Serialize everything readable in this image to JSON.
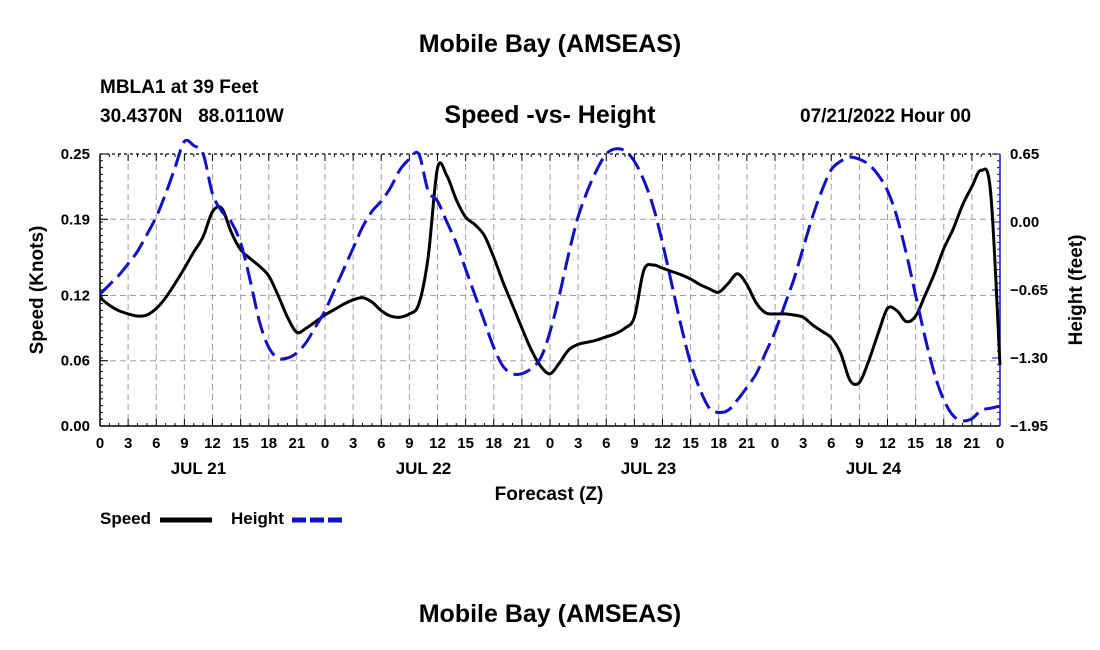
{
  "header": {
    "title": "Mobile Bay (AMSEAS)",
    "station": "MBLA1 at 39 Feet",
    "coordinates": "30.4370N   88.0110W",
    "subtitle": "Speed -vs- Height",
    "datetime": "07/21/2022 Hour 00"
  },
  "footer": {
    "title": "Mobile Bay (AMSEAS)"
  },
  "legend": {
    "speed_label": "Speed",
    "height_label": "Height"
  },
  "colors": {
    "speed": "#000000",
    "height": "#1010c8",
    "grid": "#a0a0a0"
  },
  "chart_data": {
    "type": "line",
    "title": "Speed -vs- Height",
    "xlabel": "Forecast (Z)",
    "ylabel": "Speed (Knots)",
    "y2label": "Height (feet)",
    "x_range_hours": [
      0,
      96
    ],
    "x_tick_labels": [
      "0",
      "3",
      "6",
      "9",
      "12",
      "15",
      "18",
      "21",
      "0",
      "3",
      "6",
      "9",
      "12",
      "15",
      "18",
      "21",
      "0",
      "3",
      "6",
      "9",
      "12",
      "15",
      "18",
      "21",
      "0",
      "3",
      "6",
      "9",
      "12",
      "15",
      "18",
      "21",
      "0"
    ],
    "day_labels": [
      {
        "label": "JUL 21",
        "hour": 10.5
      },
      {
        "label": "JUL 22",
        "hour": 34.5
      },
      {
        "label": "JUL 23",
        "hour": 58.5
      },
      {
        "label": "JUL 24",
        "hour": 82.5
      }
    ],
    "ylim": [
      0.0,
      0.25
    ],
    "y_ticks": [
      0.0,
      0.06,
      0.12,
      0.19,
      0.25
    ],
    "y_tick_labels": [
      "0.00",
      "0.06",
      "0.12",
      "0.19",
      "0.25"
    ],
    "y2lim": [
      -1.95,
      0.65
    ],
    "y2_ticks": [
      -1.95,
      -1.3,
      -0.65,
      0.0,
      0.65
    ],
    "y2_tick_labels": [
      "−1.95",
      "−1.30",
      "−0.65",
      "0.00",
      "0.65"
    ],
    "series": [
      {
        "name": "Speed",
        "axis": "left",
        "style": "solid",
        "x": [
          0,
          1,
          2,
          3,
          4,
          5,
          6,
          7,
          8,
          9,
          10,
          11,
          12,
          13,
          14,
          15,
          16,
          17,
          18,
          19,
          20,
          21,
          22,
          23,
          24,
          25,
          26,
          27,
          28,
          29,
          30,
          31,
          32,
          33,
          34,
          35,
          36,
          37,
          38,
          39,
          40,
          41,
          42,
          43,
          44,
          45,
          46,
          47,
          48,
          49,
          50,
          51,
          52,
          53,
          54,
          55,
          56,
          57,
          58,
          59,
          60,
          61,
          62,
          63,
          64,
          65,
          66,
          67,
          68,
          69,
          70,
          71,
          72,
          73,
          74,
          75,
          76,
          77,
          78,
          79,
          80,
          81,
          82,
          83,
          84,
          85,
          86,
          87,
          88,
          89,
          90,
          91,
          92,
          93,
          94,
          95,
          96
        ],
        "values": [
          0.118,
          0.111,
          0.106,
          0.103,
          0.101,
          0.102,
          0.108,
          0.118,
          0.131,
          0.145,
          0.16,
          0.174,
          0.197,
          0.2,
          0.178,
          0.162,
          0.154,
          0.147,
          0.138,
          0.12,
          0.1,
          0.086,
          0.09,
          0.096,
          0.102,
          0.107,
          0.112,
          0.116,
          0.118,
          0.114,
          0.106,
          0.101,
          0.1,
          0.103,
          0.112,
          0.155,
          0.237,
          0.23,
          0.208,
          0.192,
          0.185,
          0.175,
          0.155,
          0.132,
          0.111,
          0.09,
          0.07,
          0.055,
          0.048,
          0.058,
          0.07,
          0.075,
          0.077,
          0.079,
          0.082,
          0.085,
          0.09,
          0.1,
          0.143,
          0.148,
          0.145,
          0.142,
          0.139,
          0.135,
          0.13,
          0.126,
          0.123,
          0.131,
          0.14,
          0.13,
          0.113,
          0.104,
          0.103,
          0.103,
          0.102,
          0.1,
          0.093,
          0.087,
          0.081,
          0.067,
          0.042,
          0.04,
          0.06,
          0.085,
          0.108,
          0.106,
          0.096,
          0.101,
          0.12,
          0.14,
          0.163,
          0.181,
          0.203,
          0.22,
          0.235,
          0.215,
          0.056
        ]
      },
      {
        "name": "Height",
        "axis": "right",
        "style": "dashed",
        "x": [
          0,
          1,
          2,
          3,
          4,
          5,
          6,
          7,
          8,
          9,
          10,
          11,
          12,
          13,
          14,
          15,
          16,
          17,
          18,
          19,
          20,
          21,
          22,
          23,
          24,
          25,
          26,
          27,
          28,
          29,
          30,
          31,
          32,
          33,
          34,
          35,
          36,
          37,
          38,
          39,
          40,
          41,
          42,
          43,
          44,
          45,
          46,
          47,
          48,
          49,
          50,
          51,
          52,
          53,
          54,
          55,
          56,
          57,
          58,
          59,
          60,
          61,
          62,
          63,
          64,
          65,
          66,
          67,
          68,
          69,
          70,
          71,
          72,
          73,
          74,
          75,
          76,
          77,
          78,
          79,
          80,
          81,
          82,
          83,
          84,
          85,
          86,
          87,
          88,
          89,
          90,
          91,
          92,
          93,
          94,
          95,
          96
        ],
        "values": [
          -0.69,
          -0.6,
          -0.51,
          -0.4,
          -0.28,
          -0.12,
          0.05,
          0.27,
          0.52,
          0.77,
          0.73,
          0.65,
          0.27,
          0.1,
          0.0,
          -0.2,
          -0.55,
          -0.95,
          -1.2,
          -1.3,
          -1.3,
          -1.25,
          -1.15,
          -1.0,
          -0.85,
          -0.65,
          -0.45,
          -0.25,
          -0.05,
          0.1,
          0.2,
          0.33,
          0.5,
          0.6,
          0.65,
          0.3,
          0.2,
          0.0,
          -0.2,
          -0.45,
          -0.7,
          -0.95,
          -1.2,
          -1.38,
          -1.45,
          -1.45,
          -1.4,
          -1.3,
          -1.05,
          -0.7,
          -0.3,
          0.05,
          0.3,
          0.5,
          0.65,
          0.7,
          0.68,
          0.58,
          0.4,
          0.15,
          -0.2,
          -0.6,
          -1.0,
          -1.35,
          -1.6,
          -1.78,
          -1.82,
          -1.8,
          -1.7,
          -1.58,
          -1.45,
          -1.25,
          -1.05,
          -0.8,
          -0.55,
          -0.25,
          0.05,
          0.3,
          0.5,
          0.58,
          0.62,
          0.6,
          0.55,
          0.45,
          0.3,
          0.05,
          -0.3,
          -0.7,
          -1.1,
          -1.45,
          -1.7,
          -1.85,
          -1.9,
          -1.88,
          -1.8,
          -1.78,
          -1.76
        ]
      }
    ]
  }
}
